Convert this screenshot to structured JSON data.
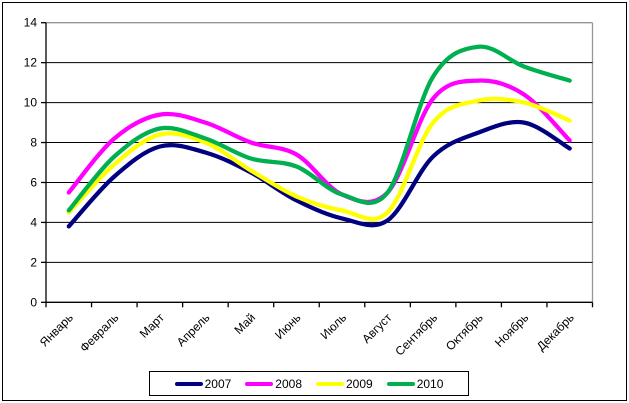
{
  "chart_data": {
    "type": "line",
    "smooth": true,
    "title": "",
    "xlabel": "",
    "ylabel": "",
    "ylim": [
      0,
      14
    ],
    "ytick_step": 2,
    "grid": true,
    "legend_position": "bottom",
    "categories": [
      "Январь",
      "Февраль",
      "Март",
      "Апрель",
      "Май",
      "Июнь",
      "Июль",
      "Август",
      "Сентябрь",
      "Октябрь",
      "Ноябрь",
      "Декабрь"
    ],
    "series": [
      {
        "name": "2007",
        "color": "#000080",
        "values": [
          3.8,
          6.3,
          7.8,
          7.5,
          6.5,
          5.1,
          4.2,
          4.1,
          7.3,
          8.5,
          9.0,
          7.7
        ]
      },
      {
        "name": "2008",
        "color": "#FF00FF",
        "values": [
          5.5,
          8.2,
          9.4,
          9.0,
          8.0,
          7.4,
          5.4,
          5.5,
          10.2,
          11.1,
          10.4,
          8.1
        ]
      },
      {
        "name": "2009",
        "color": "#FFFF00",
        "values": [
          4.5,
          6.9,
          8.4,
          8.0,
          6.6,
          5.3,
          4.6,
          4.5,
          9.0,
          10.1,
          10.0,
          9.1
        ]
      },
      {
        "name": "2010",
        "color": "#00B050",
        "values": [
          4.6,
          7.3,
          8.7,
          8.2,
          7.2,
          6.8,
          5.4,
          5.5,
          11.3,
          12.8,
          11.8,
          11.1
        ]
      }
    ],
    "colors": {
      "gridline": "#000000",
      "plot_border": "#969696",
      "axis": "#000000",
      "background": "#FFFFFF"
    }
  }
}
